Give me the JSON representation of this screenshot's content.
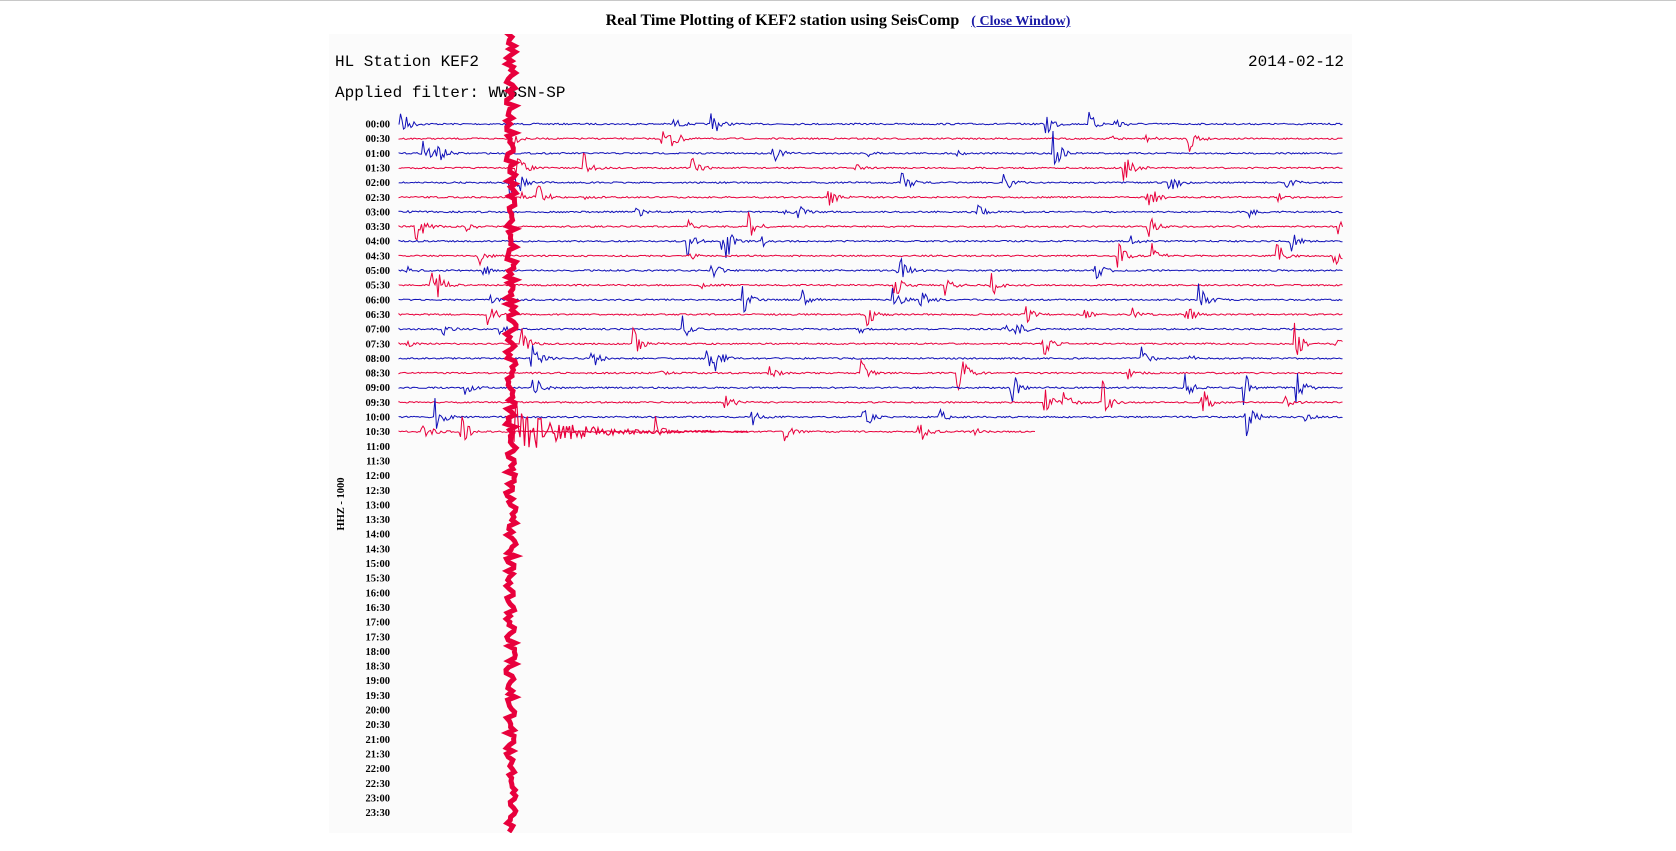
{
  "header": {
    "title": "Real Time Plotting of KEF2 station using SeisComp",
    "link": "( Close Window)"
  },
  "plot": {
    "station": "HL Station KEF2",
    "date": "2014-02-12",
    "filter": "Applied filter: WWSSN-SP",
    "channel": "HHZ - 1000",
    "times": [
      "00:00",
      "00:30",
      "01:00",
      "01:30",
      "02:00",
      "02:30",
      "03:00",
      "03:30",
      "04:00",
      "04:30",
      "05:00",
      "05:30",
      "06:00",
      "06:30",
      "07:00",
      "07:30",
      "08:00",
      "08:30",
      "09:00",
      "09:30",
      "10:00",
      "10:30",
      "11:00",
      "11:30",
      "12:00",
      "12:30",
      "13:00",
      "13:30",
      "14:00",
      "14:30",
      "15:00",
      "15:30",
      "16:00",
      "16:30",
      "17:00",
      "17:30",
      "18:00",
      "18:30",
      "19:00",
      "19:30",
      "20:00",
      "20:30",
      "21:00",
      "21:30",
      "22:00",
      "22:30",
      "23:00",
      "23:30"
    ]
  }
}
